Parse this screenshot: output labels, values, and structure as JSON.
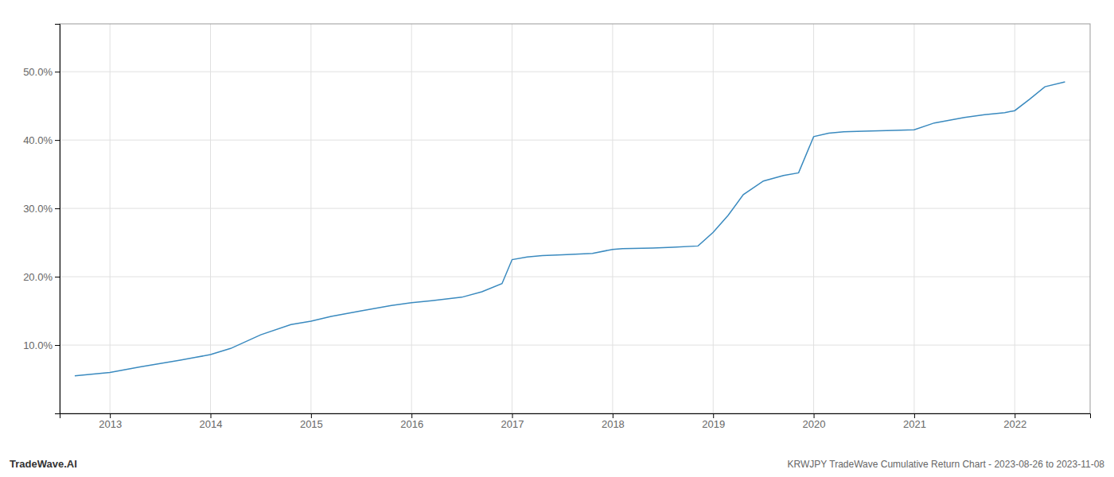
{
  "chart_data": {
    "type": "line",
    "title": "KRWJPY TradeWave Cumulative Return Chart - 2023-08-26 to 2023-11-08",
    "annotations": [
      "TradeWave.AI"
    ],
    "color": "#3a8abf",
    "x": [
      2012.65,
      2013.0,
      2013.15,
      2013.3,
      2013.5,
      2013.7,
      2013.85,
      2014.0,
      2014.2,
      2014.5,
      2014.8,
      2015.0,
      2015.2,
      2015.5,
      2015.8,
      2016.0,
      2016.2,
      2016.5,
      2016.7,
      2016.9,
      2017.0,
      2017.15,
      2017.3,
      2017.5,
      2017.8,
      2018.0,
      2018.1,
      2018.2,
      2018.4,
      2018.6,
      2018.85,
      2019.0,
      2019.15,
      2019.3,
      2019.5,
      2019.7,
      2019.85,
      2020.0,
      2020.15,
      2020.3,
      2020.5,
      2020.8,
      2021.0,
      2021.2,
      2021.5,
      2021.7,
      2021.9,
      2022.0,
      2022.15,
      2022.3,
      2022.5
    ],
    "values": [
      5.5,
      6.0,
      6.4,
      6.8,
      7.3,
      7.8,
      8.2,
      8.6,
      9.5,
      11.5,
      13.0,
      13.5,
      14.2,
      15.0,
      15.8,
      16.2,
      16.5,
      17.0,
      17.8,
      19.0,
      22.5,
      22.9,
      23.1,
      23.2,
      23.4,
      24.0,
      24.1,
      24.15,
      24.2,
      24.3,
      24.5,
      26.5,
      29.0,
      32.0,
      34.0,
      34.8,
      35.2,
      40.5,
      41.0,
      41.2,
      41.3,
      41.4,
      41.5,
      42.5,
      43.3,
      43.7,
      44.0,
      44.3,
      46.0,
      47.8,
      48.5
    ],
    "xlim": [
      2012.5,
      2022.75
    ],
    "xticks": [
      2013,
      2014,
      2015,
      2016,
      2017,
      2018,
      2019,
      2020,
      2021,
      2022
    ],
    "ylim": [
      0,
      57
    ],
    "yticks": [
      {
        "value": 10.0,
        "label": "10.0%"
      },
      {
        "value": 20.0,
        "label": "20.0%"
      },
      {
        "value": 30.0,
        "label": "30.0%"
      },
      {
        "value": 40.0,
        "label": "40.0%"
      },
      {
        "value": 50.0,
        "label": "50.0%"
      }
    ],
    "grid": true
  }
}
